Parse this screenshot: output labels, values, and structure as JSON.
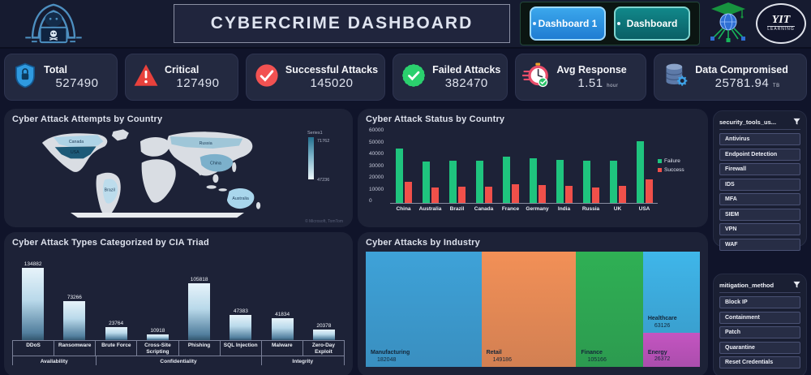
{
  "header": {
    "title": "CYBERCRIME DASHBOARD",
    "buttons": [
      {
        "label": "Dashboard 1"
      },
      {
        "label": "Dashboard"
      }
    ],
    "logo": {
      "yit_line1": "YIT",
      "yit_line2": "LEARNING"
    }
  },
  "kpis": [
    {
      "label": "Total",
      "value": "527490",
      "unit": "",
      "icon": "shield-lock-icon"
    },
    {
      "label": "Critical",
      "value": "127490",
      "unit": "",
      "icon": "warning-triangle-icon"
    },
    {
      "label": "Successful Attacks",
      "value": "145020",
      "unit": "",
      "icon": "red-check-circle-icon"
    },
    {
      "label": "Failed Attacks",
      "value": "382470",
      "unit": "",
      "icon": "green-badge-check-icon"
    },
    {
      "label": "Avg Response",
      "value": "1.51",
      "unit": "hour",
      "icon": "stopwatch-icon"
    },
    {
      "label": "Data Compromised",
      "value": "25781.94",
      "unit": "TB",
      "icon": "database-icon"
    }
  ],
  "chart_data": [
    {
      "type": "map",
      "title": "Cyber Attack Attempts by Country",
      "legend": {
        "series": "Series1",
        "max": "71762",
        "min": "47236"
      },
      "countries": [
        {
          "name": "Canada",
          "shade": "light"
        },
        {
          "name": "USA",
          "shade": "darkest"
        },
        {
          "name": "Brazil",
          "shade": "light"
        },
        {
          "name": "Russia",
          "shade": "medium"
        },
        {
          "name": "China",
          "shade": "medium"
        },
        {
          "name": "Australia",
          "shade": "light"
        }
      ],
      "attribution": "© Microsoft, TomTom"
    },
    {
      "type": "bar",
      "title": "Cyber Attack Status by Country",
      "categories": [
        "China",
        "Australia",
        "Brazil",
        "Canada",
        "France",
        "Germany",
        "India",
        "Russia",
        "UK",
        "USA"
      ],
      "series": [
        {
          "name": "Failure",
          "color": "#1fc47e",
          "values": [
            43000,
            33000,
            33500,
            33500,
            36500,
            35500,
            34000,
            33500,
            33500,
            49000
          ]
        },
        {
          "name": "Success",
          "color": "#f0504a",
          "values": [
            17000,
            12500,
            13000,
            13000,
            15000,
            14500,
            13500,
            12500,
            13500,
            19000
          ]
        }
      ],
      "ylim": [
        0,
        60000
      ],
      "yticks": [
        "60000",
        "50000",
        "40000",
        "30000",
        "20000",
        "10000",
        "0"
      ],
      "legend_position": "right",
      "grid": false
    },
    {
      "type": "bar",
      "title": "Cyber Attack Types Categorized by CIA Triad",
      "categories": [
        "DDoS",
        "Ransomware",
        "Brute Force",
        "Cross-Site Scripting",
        "Phishing",
        "SQL Injection",
        "Malware",
        "Zero-Day Exploit"
      ],
      "values": [
        134882,
        73266,
        23764,
        10918,
        105818,
        47383,
        41834,
        20378
      ],
      "groups": [
        {
          "label": "Availability",
          "span": 2
        },
        {
          "label": "Confidentiality",
          "span": 4
        },
        {
          "label": "Integrity",
          "span": 2
        }
      ],
      "ylim": [
        0,
        140000
      ]
    },
    {
      "type": "treemap",
      "title": "Cyber Attacks by Industry",
      "items": [
        {
          "name": "Manufacturing",
          "value": 182048,
          "color": "#3ea2d8"
        },
        {
          "name": "Retail",
          "value": 149186,
          "color": "#f29057"
        },
        {
          "name": "Finance",
          "value": 105166,
          "color": "#2fb054"
        },
        {
          "name": "Healthcare",
          "value": 63126,
          "color": "#3fb6ea"
        },
        {
          "name": "Energy",
          "value": 26372,
          "color": "#c455c1"
        }
      ]
    }
  ],
  "slicers": [
    {
      "title": "security_tools_us...",
      "items": [
        "Antivirus",
        "Endpoint Detection",
        "Firewall",
        "IDS",
        "MFA",
        "SIEM",
        "VPN",
        "WAF"
      ]
    },
    {
      "title": "mitigation_method",
      "items": [
        "Block IP",
        "Containment",
        "Patch",
        "Quarantine",
        "Reset Credentials"
      ]
    }
  ]
}
